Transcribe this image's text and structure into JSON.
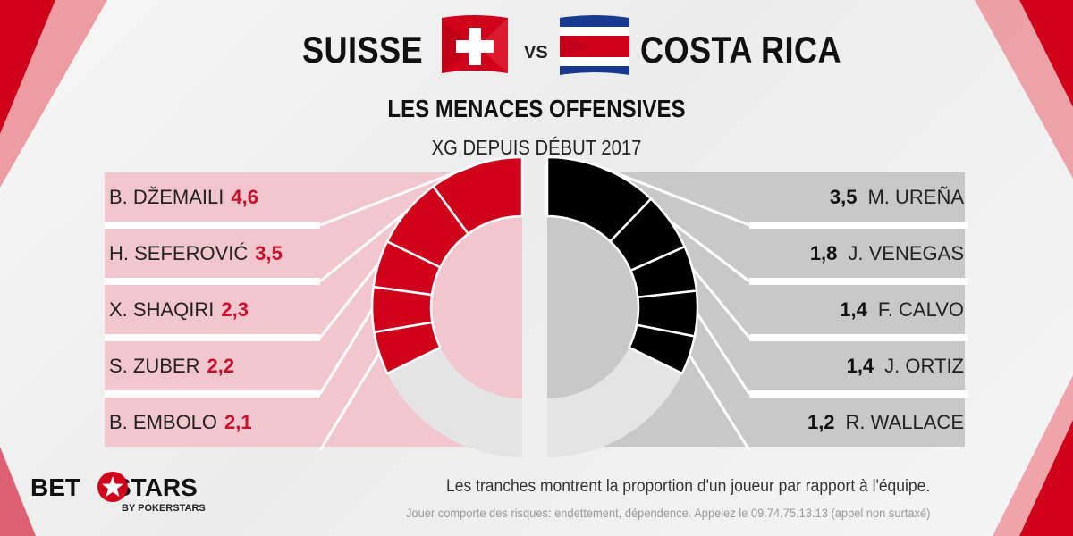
{
  "header": {
    "team_left": "SUISSE",
    "vs": "VS",
    "team_right": "COSTA RICA",
    "subtitle": "LES MENACES OFFENSIVES",
    "metric": "XG DEPUIS DÉBUT 2017"
  },
  "flags": {
    "left": "switzerland-flag-icon",
    "right": "costa-rica-flag-icon"
  },
  "colors": {
    "left_accent": "#d0021b",
    "left_panel": "#f2c6cd",
    "right_accent": "#000000",
    "right_panel": "#c8c8c8",
    "remainder": "#e4e4e4",
    "number_left": "#c8102e"
  },
  "chart_data": [
    {
      "type": "pie",
      "title": "SUISSE",
      "categories": [
        "B. DŽEMAILI",
        "H. SEFEROVIĆ",
        "X. SHAQIRI",
        "S. ZUBER",
        "B. EMBOLO"
      ],
      "values": [
        4.6,
        3.5,
        2.3,
        2.2,
        2.1
      ],
      "display_values": [
        "4,6",
        "3,5",
        "2,3",
        "2,2",
        "2,1"
      ],
      "color": "#d0021b"
    },
    {
      "type": "pie",
      "title": "COSTA RICA",
      "categories": [
        "M. UREÑA",
        "J. VENEGAS",
        "F. CALVO",
        "J. ORTIZ",
        "R. WALLACE"
      ],
      "values": [
        3.5,
        1.8,
        1.4,
        1.4,
        1.2
      ],
      "display_values": [
        "3,5",
        "1,8",
        "1,4",
        "1,4",
        "1,2"
      ],
      "color": "#000000"
    }
  ],
  "footer": {
    "note": "Les tranches montrent la proportion d'un joueur par rapport à l'équipe.",
    "disclaimer": "Jouer comporte des risques: endettement, dépendence. Appelez le 09.74.75.13.13 (appel non surtaxé)",
    "logo_left": "BET",
    "logo_right": "STARS",
    "logo_sub": "BY POKERSTARS"
  }
}
